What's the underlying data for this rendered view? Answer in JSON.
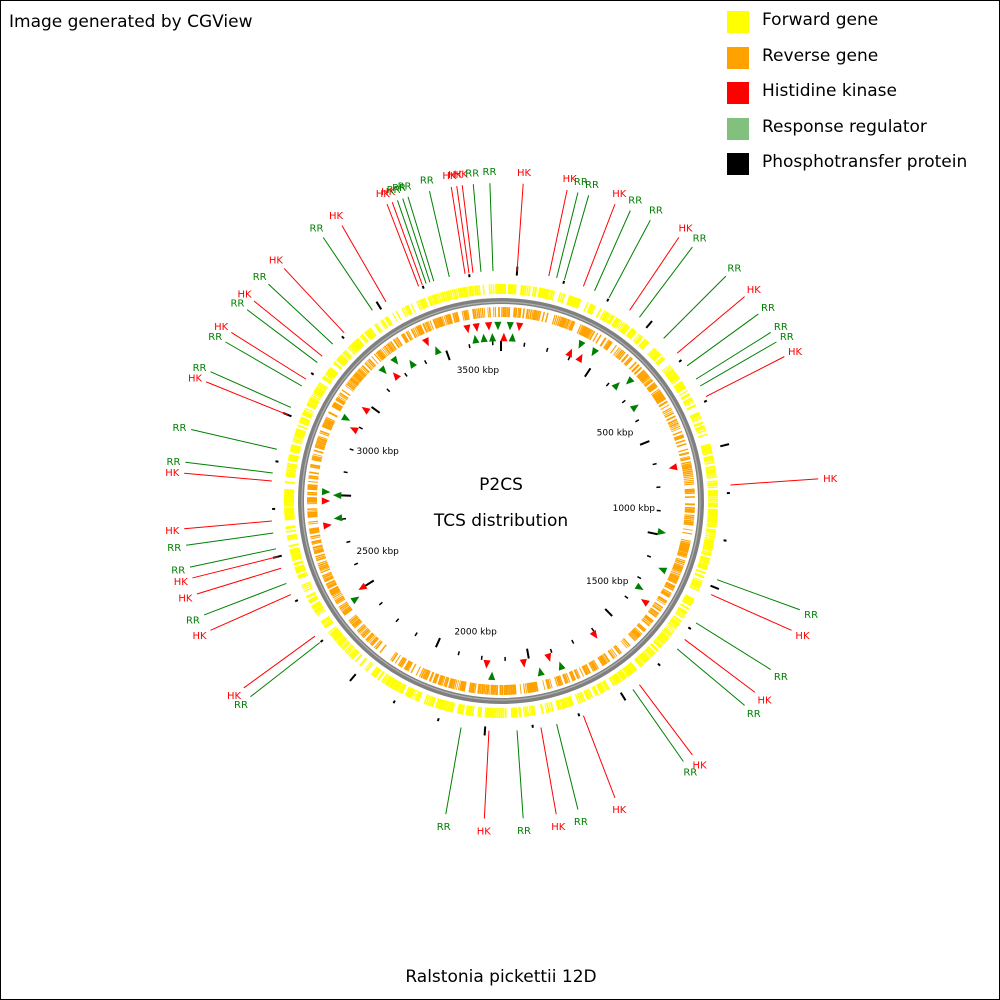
{
  "header_note": "Image generated by CGView",
  "footer_title": "Ralstonia pickettii 12D",
  "center_title": "P2CS",
  "center_subtitle": "TCS distribution",
  "legend": [
    {
      "label": "Forward gene",
      "color": "#ffff00"
    },
    {
      "label": "Reverse gene",
      "color": "#ffa200"
    },
    {
      "label": "Histidine kinase",
      "color": "#ff0000"
    },
    {
      "label": "Response regulator",
      "color": "#82c07d"
    },
    {
      "label": "Phosphotransfer protein",
      "color": "#000000"
    }
  ],
  "colors": {
    "hk_label": "#ff0000",
    "rr_label": "#008000",
    "hk_marker": "#ff0000",
    "rr_marker": "#008000",
    "backbone": "#808080",
    "tick": "#000000"
  },
  "axis_labels": [
    {
      "text": "500 kbp",
      "angle": 59
    },
    {
      "text": "1000 kbp",
      "angle": 93
    },
    {
      "text": "1500 kbp",
      "angle": 127
    },
    {
      "text": "2000 kbp",
      "angle": 191
    },
    {
      "text": "2500 kbp",
      "angle": 248
    },
    {
      "text": "3000 kbp",
      "angle": 292
    },
    {
      "text": "3500 kbp",
      "angle": 350
    }
  ],
  "external_labels": [
    {
      "angle": -21,
      "type": "HK"
    },
    {
      "angle": -20,
      "type": "HK"
    },
    {
      "angle": -19,
      "type": "RR"
    },
    {
      "angle": -18,
      "type": "RR"
    },
    {
      "angle": -17,
      "type": "RR"
    },
    {
      "angle": -13,
      "type": "RR"
    },
    {
      "angle": -9,
      "type": "HK"
    },
    {
      "angle": -8,
      "type": "HK"
    },
    {
      "angle": -7,
      "type": "HK"
    },
    {
      "angle": -5,
      "type": "RR"
    },
    {
      "angle": -2,
      "type": "RR"
    },
    {
      "angle": 4,
      "type": "HK"
    },
    {
      "angle": 12,
      "type": "HK"
    },
    {
      "angle": 14,
      "type": "RR"
    },
    {
      "angle": 16,
      "type": "RR"
    },
    {
      "angle": 21,
      "type": "HK"
    },
    {
      "angle": 24,
      "type": "RR"
    },
    {
      "angle": 28,
      "type": "RR"
    },
    {
      "angle": 34,
      "type": "HK"
    },
    {
      "angle": 37,
      "type": "RR"
    },
    {
      "angle": 45,
      "type": "RR"
    },
    {
      "angle": 50,
      "type": "HK"
    },
    {
      "angle": 54,
      "type": "RR"
    },
    {
      "angle": 58,
      "type": "RR"
    },
    {
      "angle": 60,
      "type": "RR"
    },
    {
      "angle": 63,
      "type": "HK"
    },
    {
      "angle": 86,
      "type": "HK"
    },
    {
      "angle": 110,
      "type": "RR"
    },
    {
      "angle": 114,
      "type": "HK"
    },
    {
      "angle": 122,
      "type": "RR"
    },
    {
      "angle": 127,
      "type": "HK"
    },
    {
      "angle": 130,
      "type": "RR"
    },
    {
      "angle": 143,
      "type": "HK"
    },
    {
      "angle": 145,
      "type": "RR"
    },
    {
      "angle": 159,
      "type": "HK"
    },
    {
      "angle": 166,
      "type": "RR"
    },
    {
      "angle": 170,
      "type": "HK"
    },
    {
      "angle": 176,
      "type": "RR"
    },
    {
      "angle": 183,
      "type": "HK"
    },
    {
      "angle": 190,
      "type": "RR"
    },
    {
      "angle": 232,
      "type": "RR"
    },
    {
      "angle": 234,
      "type": "HK"
    },
    {
      "angle": 246,
      "type": "HK"
    },
    {
      "angle": 249,
      "type": "RR"
    },
    {
      "angle": 253,
      "type": "HK"
    },
    {
      "angle": 256,
      "type": "HK"
    },
    {
      "angle": 258,
      "type": "RR"
    },
    {
      "angle": 262,
      "type": "RR"
    },
    {
      "angle": 265,
      "type": "HK"
    },
    {
      "angle": 275,
      "type": "HK"
    },
    {
      "angle": 277,
      "type": "RR"
    },
    {
      "angle": 283,
      "type": "RR"
    },
    {
      "angle": 292,
      "type": "HK"
    },
    {
      "angle": 294,
      "type": "RR"
    },
    {
      "angle": 300,
      "type": "RR"
    },
    {
      "angle": 302,
      "type": "HK"
    },
    {
      "angle": 307,
      "type": "RR"
    },
    {
      "angle": 309,
      "type": "HK"
    },
    {
      "angle": 313,
      "type": "RR"
    },
    {
      "angle": 317,
      "type": "HK"
    },
    {
      "angle": 326,
      "type": "RR"
    },
    {
      "angle": 330,
      "type": "HK"
    }
  ],
  "inner_markers": [
    {
      "angle": 349,
      "type": "HK"
    },
    {
      "angle": 351,
      "type": "RR"
    },
    {
      "angle": 352,
      "type": "HK"
    },
    {
      "angle": 354,
      "type": "RR"
    },
    {
      "angle": 356,
      "type": "HK"
    },
    {
      "angle": 357,
      "type": "RR"
    },
    {
      "angle": 359,
      "type": "RR"
    },
    {
      "angle": 1,
      "type": "HK"
    },
    {
      "angle": 3,
      "type": "RR"
    },
    {
      "angle": 4,
      "type": "RR"
    },
    {
      "angle": 6,
      "type": "HK"
    },
    {
      "angle": 25,
      "type": "HK"
    },
    {
      "angle": 27,
      "type": "RR"
    },
    {
      "angle": 29,
      "type": "HK"
    },
    {
      "angle": 32,
      "type": "RR"
    },
    {
      "angle": 45,
      "type": "RR"
    },
    {
      "angle": 47,
      "type": "RR"
    },
    {
      "angle": 55,
      "type": "RR"
    },
    {
      "angle": 79,
      "type": "HK"
    },
    {
      "angle": 101,
      "type": "RR"
    },
    {
      "angle": 113,
      "type": "RR"
    },
    {
      "angle": 122,
      "type": "RR"
    },
    {
      "angle": 125,
      "type": "HK"
    },
    {
      "angle": 145,
      "type": "HK"
    },
    {
      "angle": 160,
      "type": "RR"
    },
    {
      "angle": 163,
      "type": "HK"
    },
    {
      "angle": 167,
      "type": "RR"
    },
    {
      "angle": 172,
      "type": "HK"
    },
    {
      "angle": 183,
      "type": "RR"
    },
    {
      "angle": 185,
      "type": "HK"
    },
    {
      "angle": 236,
      "type": "RR"
    },
    {
      "angle": 238,
      "type": "HK"
    },
    {
      "angle": 262,
      "type": "HK"
    },
    {
      "angle": 264,
      "type": "RR"
    },
    {
      "angle": 270,
      "type": "HK"
    },
    {
      "angle": 272,
      "type": "RR"
    },
    {
      "angle": 273,
      "type": "RR"
    },
    {
      "angle": 296,
      "type": "HK"
    },
    {
      "angle": 298,
      "type": "RR"
    },
    {
      "angle": 304,
      "type": "HK"
    },
    {
      "angle": 318,
      "type": "RR"
    },
    {
      "angle": 320,
      "type": "HK"
    },
    {
      "angle": 323,
      "type": "RR"
    },
    {
      "angle": 327,
      "type": "RR"
    },
    {
      "angle": 335,
      "type": "HK"
    },
    {
      "angle": 337,
      "type": "RR"
    }
  ]
}
